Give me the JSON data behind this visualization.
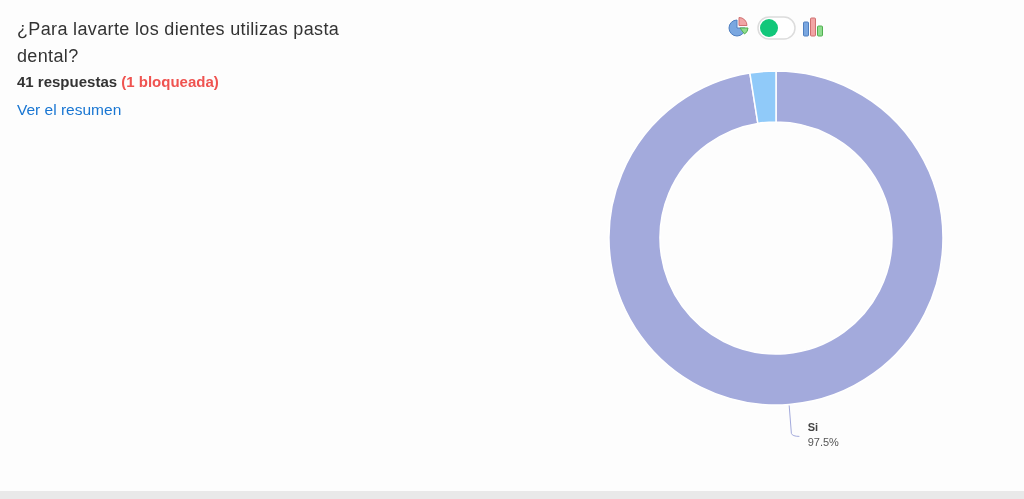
{
  "chart_data": {
    "type": "donut",
    "title": "¿Para lavarte los dientes utilizas pasta dental?",
    "subtitle": "41 respuestas",
    "annotations": [
      "(1 bloqueada)",
      "Ver el resumen"
    ],
    "categories": [
      "Si",
      null
    ],
    "values": [
      97.5,
      2.5
    ],
    "colors": [
      "#a3aadc",
      "#90caf9"
    ],
    "value_labels": [
      "97.5%",
      null
    ]
  }
}
